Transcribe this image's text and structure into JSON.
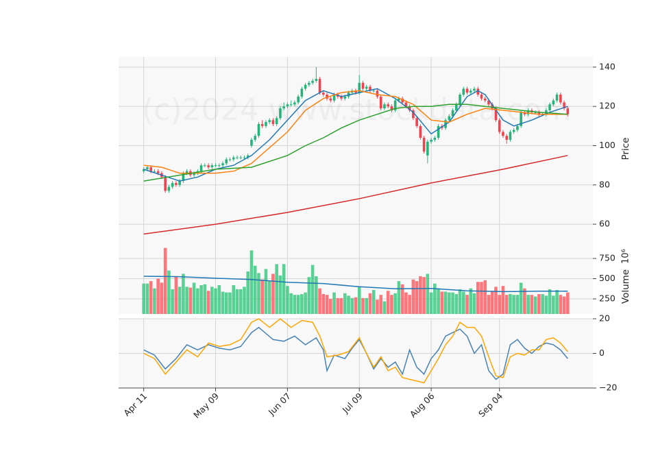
{
  "chart_data": [
    {
      "type": "candlestick",
      "ylabel": "Price",
      "watermark": "(c)2024 www.stockdata.com",
      "up_color": "#26b37a",
      "down_color": "#f0434f",
      "xlim": [
        -7,
        125
      ],
      "ylim": [
        51.3,
        145.2
      ],
      "yticks": [
        60,
        80,
        100,
        120,
        140
      ],
      "grid": true,
      "open": [
        87,
        88,
        89,
        87,
        87,
        86,
        84,
        77,
        79,
        81,
        80,
        82,
        86,
        87,
        85,
        86,
        87,
        90,
        90,
        89,
        90,
        90,
        90,
        91,
        93,
        93,
        94,
        94,
        94,
        94,
        100,
        103,
        105,
        111,
        110,
        112,
        113,
        111,
        114,
        119,
        120,
        121,
        121,
        122,
        125,
        129,
        131,
        132,
        133,
        134,
        127,
        126,
        124,
        123,
        126,
        125,
        124,
        125,
        127,
        128,
        127,
        132,
        129,
        130,
        128,
        128,
        125,
        119,
        121,
        120,
        118,
        123,
        124,
        122,
        120,
        118,
        114,
        110,
        104,
        95,
        102,
        103,
        104,
        110,
        109,
        113,
        115,
        118,
        121,
        126,
        129,
        127,
        128,
        129,
        126,
        124,
        123,
        121,
        119,
        113,
        107,
        105,
        103,
        107,
        108,
        110,
        117,
        116,
        118,
        117,
        117,
        116,
        116,
        118,
        121,
        123,
        126,
        122,
        119
      ],
      "high": [
        89,
        90,
        90,
        88,
        88,
        87,
        85,
        80,
        82,
        82,
        83,
        87,
        88,
        88,
        87,
        88,
        91,
        91,
        91,
        91,
        91,
        91,
        92,
        94,
        94,
        95,
        95,
        95,
        95,
        96,
        104,
        106,
        112,
        113,
        113,
        114,
        114,
        115,
        120,
        122,
        122,
        123,
        123,
        126,
        130,
        132,
        133,
        134,
        140,
        135,
        128,
        127,
        125,
        127,
        127,
        126,
        126,
        128,
        129,
        129,
        136,
        133,
        131,
        131,
        129,
        129,
        126,
        122,
        122,
        121,
        124,
        125,
        125,
        123,
        121,
        119,
        115,
        111,
        105,
        103,
        104,
        105,
        111,
        111,
        114,
        116,
        119,
        122,
        127,
        130,
        130,
        129,
        130,
        130,
        127,
        125,
        124,
        122,
        120,
        114,
        108,
        106,
        108,
        109,
        111,
        118,
        118,
        119,
        119,
        118,
        118,
        117,
        119,
        122,
        124,
        127,
        127,
        123,
        120
      ],
      "low": [
        86,
        87,
        86,
        86,
        85,
        83,
        76,
        76,
        78,
        79,
        79,
        81,
        85,
        84,
        84,
        85,
        86,
        89,
        88,
        88,
        89,
        89,
        89,
        90,
        92,
        92,
        93,
        93,
        93,
        93,
        99,
        102,
        104,
        109,
        109,
        111,
        110,
        110,
        113,
        118,
        119,
        120,
        120,
        121,
        124,
        128,
        130,
        131,
        132,
        126,
        125,
        123,
        122,
        122,
        124,
        123,
        123,
        124,
        126,
        126,
        126,
        128,
        128,
        127,
        127,
        124,
        118,
        118,
        119,
        117,
        117,
        122,
        121,
        119,
        117,
        113,
        109,
        103,
        96,
        91,
        101,
        102,
        103,
        108,
        108,
        112,
        114,
        117,
        120,
        125,
        126,
        126,
        127,
        125,
        123,
        122,
        120,
        118,
        112,
        106,
        104,
        101,
        102,
        106,
        107,
        109,
        115,
        115,
        116,
        116,
        115,
        115,
        115,
        117,
        120,
        122,
        121,
        118,
        115
      ],
      "close": [
        88,
        89,
        87,
        87,
        86,
        84,
        77,
        79,
        81,
        80,
        82,
        86,
        87,
        85,
        86,
        87,
        90,
        90,
        89,
        90,
        90,
        90,
        91,
        93,
        93,
        94,
        94,
        94,
        94,
        95,
        103,
        105,
        111,
        110,
        112,
        113,
        111,
        114,
        119,
        120,
        121,
        121,
        122,
        125,
        129,
        131,
        132,
        133,
        134,
        127,
        126,
        124,
        123,
        126,
        125,
        124,
        125,
        127,
        128,
        127,
        132,
        129,
        130,
        128,
        128,
        125,
        119,
        121,
        120,
        118,
        123,
        124,
        122,
        120,
        118,
        114,
        110,
        104,
        97,
        102,
        103,
        104,
        110,
        109,
        113,
        115,
        118,
        121,
        126,
        129,
        127,
        128,
        129,
        126,
        124,
        123,
        121,
        119,
        113,
        107,
        105,
        103,
        107,
        108,
        110,
        117,
        116,
        118,
        117,
        117,
        116,
        116,
        118,
        121,
        123,
        126,
        122,
        119,
        116
      ],
      "series": [
        {
          "color": "#1f77b4",
          "x": [
            0,
            5,
            10,
            15,
            20,
            25,
            30,
            35,
            40,
            45,
            50,
            55,
            60,
            65,
            70,
            75,
            80,
            85,
            90,
            93,
            95,
            100,
            103,
            108,
            113,
            118
          ],
          "values": [
            88,
            85,
            82,
            84,
            88,
            90,
            95,
            103,
            113,
            123,
            128,
            125,
            127,
            129,
            124,
            117,
            106,
            112,
            125,
            128,
            126,
            113,
            110,
            113,
            117,
            120
          ]
        },
        {
          "color": "#ff7f0e",
          "x": [
            0,
            5,
            10,
            15,
            20,
            25,
            30,
            35,
            40,
            45,
            50,
            55,
            60,
            65,
            70,
            75,
            80,
            85,
            90,
            95,
            100,
            105,
            110,
            118
          ],
          "values": [
            90,
            89,
            86,
            86,
            86,
            87,
            91,
            99,
            107,
            118,
            124,
            127,
            128,
            126,
            125,
            121,
            113,
            112,
            116,
            119,
            118,
            117,
            116,
            116
          ]
        },
        {
          "color": "#2ca02c",
          "x": [
            0,
            10,
            20,
            30,
            40,
            45,
            50,
            55,
            60,
            65,
            70,
            75,
            80,
            85,
            90,
            95,
            100,
            105,
            110,
            118
          ],
          "values": [
            82,
            85,
            88,
            89,
            95,
            100,
            104,
            109,
            113,
            116,
            119,
            120,
            120,
            121,
            121,
            120,
            119,
            118,
            117,
            116
          ]
        },
        {
          "color": "#d62728",
          "x": [
            0,
            20,
            40,
            60,
            80,
            100,
            118
          ],
          "values": [
            55,
            60,
            66,
            73,
            81,
            88,
            95
          ]
        }
      ]
    },
    {
      "type": "bar",
      "ylabel": "Volume",
      "offset_text": "10⁶",
      "up_color": "#3dca83",
      "down_color": "#ff5f66",
      "xlim": [
        -7,
        125
      ],
      "ylim": [
        64,
        962
      ],
      "yticks": [
        250,
        500,
        750
      ],
      "grid": true,
      "values": [
        440,
        440,
        470,
        380,
        500,
        450,
        880,
        600,
        370,
        530,
        400,
        560,
        400,
        390,
        450,
        380,
        420,
        430,
        350,
        400,
        380,
        420,
        340,
        330,
        330,
        420,
        370,
        370,
        400,
        590,
        850,
        660,
        570,
        490,
        620,
        470,
        560,
        680,
        540,
        680,
        410,
        320,
        300,
        300,
        310,
        330,
        520,
        670,
        530,
        380,
        310,
        300,
        250,
        330,
        260,
        260,
        320,
        290,
        260,
        270,
        400,
        260,
        260,
        320,
        360,
        240,
        300,
        220,
        350,
        300,
        320,
        470,
        430,
        330,
        300,
        490,
        470,
        530,
        520,
        560,
        330,
        440,
        380,
        340,
        340,
        330,
        330,
        310,
        370,
        340,
        300,
        380,
        320,
        460,
        460,
        480,
        300,
        350,
        400,
        300,
        410,
        300,
        310,
        300,
        300,
        450,
        380,
        300,
        300,
        280,
        310,
        310,
        290,
        370,
        290,
        360,
        300,
        280,
        330
      ],
      "series": [
        {
          "color": "#1f77b4",
          "x": [
            0,
            10,
            20,
            30,
            40,
            50,
            60,
            70,
            80,
            90,
            100,
            110,
            118
          ],
          "values": [
            530,
            525,
            505,
            490,
            455,
            440,
            400,
            375,
            380,
            350,
            340,
            345,
            345
          ]
        }
      ]
    },
    {
      "type": "line",
      "xlim": [
        -7,
        125
      ],
      "ylim": [
        -20,
        20
      ],
      "yticks": [
        {
          "value": -20,
          "label": "−20"
        },
        0,
        20
      ],
      "grid": true,
      "xticks": [
        {
          "value": 0,
          "label": "Apr 11"
        },
        {
          "value": 20,
          "label": "May 09"
        },
        {
          "value": 40,
          "label": "Jun 07"
        },
        {
          "value": 60,
          "label": "Jul 09"
        },
        {
          "value": 80,
          "label": "Aug 06"
        },
        {
          "value": 99,
          "label": "Sep 04"
        }
      ],
      "series": [
        {
          "color": "#4682b4",
          "x": [
            0,
            3,
            6,
            9,
            12,
            15,
            18,
            21,
            24,
            27,
            30,
            32,
            36,
            39,
            42,
            45,
            48,
            50,
            51,
            53,
            56,
            58,
            60,
            62,
            64,
            66,
            68,
            70,
            72,
            74,
            76,
            78,
            80,
            82,
            84,
            86,
            88,
            90,
            92,
            94,
            96,
            98,
            100,
            102,
            104,
            106,
            108,
            110,
            112,
            114,
            116,
            118
          ],
          "values": [
            2,
            -1,
            -9,
            -3,
            5,
            2,
            5,
            3,
            2,
            4,
            12,
            15,
            8,
            7,
            10,
            5,
            9,
            2,
            -10,
            -1,
            -3,
            3,
            8,
            0,
            -9,
            -3,
            -8,
            -5,
            -12,
            2,
            -8,
            -12,
            -3,
            2,
            10,
            12,
            14,
            10,
            0,
            5,
            -10,
            -15,
            -12,
            5,
            8,
            3,
            0,
            4,
            6,
            5,
            2,
            -3
          ]
        },
        {
          "color": "#ffa500",
          "x": [
            0,
            3,
            6,
            9,
            12,
            15,
            18,
            21,
            24,
            27,
            30,
            32,
            35,
            38,
            41,
            44,
            47,
            49,
            51,
            54,
            57,
            60,
            62,
            64,
            66,
            68,
            70,
            72,
            74,
            76,
            78,
            80,
            82,
            84,
            86,
            88,
            90,
            92,
            94,
            96,
            98,
            100,
            102,
            104,
            106,
            108,
            110,
            112,
            114,
            116,
            118
          ],
          "values": [
            0,
            -3,
            -12,
            -5,
            2,
            -2,
            6,
            4,
            5,
            8,
            18,
            20,
            15,
            20,
            15,
            19,
            18,
            10,
            -2,
            -1,
            1,
            9,
            0,
            -8,
            -2,
            -10,
            -8,
            -14,
            -15,
            -16,
            -17,
            -10,
            -3,
            5,
            10,
            18,
            15,
            15,
            10,
            -2,
            -13,
            -14,
            -2,
            0,
            -1,
            2,
            2,
            8,
            9,
            6,
            1
          ]
        }
      ]
    }
  ]
}
